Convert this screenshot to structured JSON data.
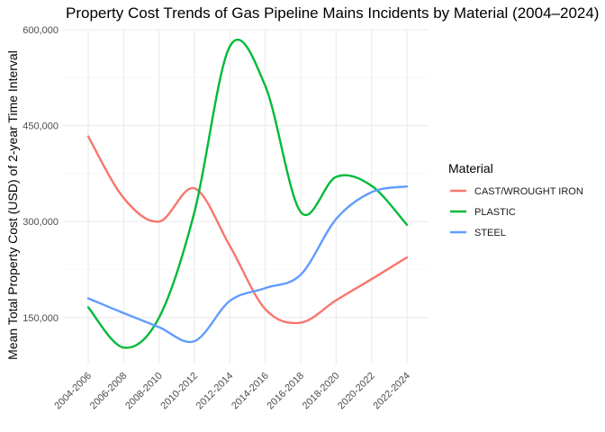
{
  "chart_data": {
    "type": "line",
    "title": "Property Cost Trends of Gas Pipeline Mains Incidents by Material (2004–2024)",
    "xlabel": "",
    "ylabel": "Mean Total Property Cost (USD) of 2-year Time Interval",
    "categories": [
      "2004-2006",
      "2006-2008",
      "2008-2010",
      "2010-2012",
      "2012-2014",
      "2014-2016",
      "2016-2018",
      "2018-2020",
      "2020-2022",
      "2022-2024"
    ],
    "ylim": [
      78000,
      600000
    ],
    "yticks": [
      150000,
      300000,
      450000,
      600000
    ],
    "ytick_labels": [
      "150,000",
      "300,000",
      "450,000",
      "600,000"
    ],
    "grid": true,
    "legend": {
      "title": "Material",
      "position": "right"
    },
    "series": [
      {
        "name": "CAST/WROUGHT IRON",
        "color": "#F8766D",
        "values": [
          433000,
          337000,
          300000,
          352000,
          262000,
          163000,
          142000,
          177000,
          210000,
          244000
        ]
      },
      {
        "name": "PLASTIC",
        "color": "#00BA38",
        "values": [
          166000,
          103000,
          150000,
          315000,
          574000,
          512000,
          315000,
          370000,
          356000,
          295000
        ]
      },
      {
        "name": "STEEL",
        "color": "#619CFF",
        "values": [
          180000,
          157000,
          135000,
          113000,
          176000,
          196000,
          217000,
          304000,
          346000,
          355000
        ]
      }
    ]
  }
}
